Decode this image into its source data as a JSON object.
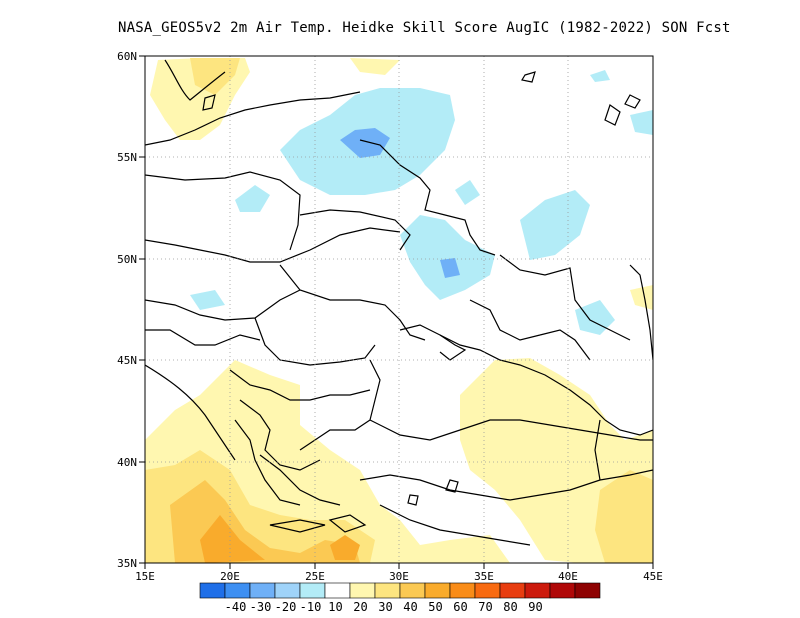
{
  "title": "NASA_GEOS5v2  2m Air Temp. Heidke Skill Score AugIC (1982-2022) SON Fcst",
  "map": {
    "lon_range": [
      15,
      45
    ],
    "lat_range": [
      35,
      60
    ],
    "x_ticks": [
      "15E",
      "20E",
      "25E",
      "30E",
      "35E",
      "40E",
      "45E"
    ],
    "y_ticks": [
      "35N",
      "40N",
      "45N",
      "50N",
      "55N",
      "60N"
    ],
    "gridlines": true
  },
  "colorbar": {
    "colors": [
      "#1f6fe8",
      "#3d8ff2",
      "#6fb0f7",
      "#9fd3f9",
      "#b3ecf7",
      "#ffffff",
      "#fff7b0",
      "#fde580",
      "#fbc953",
      "#f9ab2c",
      "#f98c18",
      "#f86a10",
      "#e83d10",
      "#cc1a0c",
      "#b00808",
      "#8e0202"
    ],
    "labels": [
      "-40",
      "-30",
      "-20",
      "-10",
      "10",
      "20",
      "30",
      "40",
      "50",
      "60",
      "70",
      "80",
      "90"
    ]
  }
}
